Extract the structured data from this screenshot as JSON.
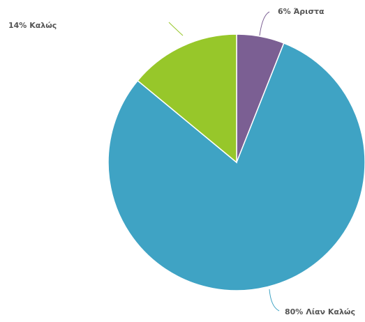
{
  "chart_data": {
    "type": "pie",
    "categories": [
      "Άριστα",
      "Λίαν Καλώς",
      "Καλώς"
    ],
    "values": [
      6,
      80,
      14
    ],
    "value_labels": [
      "6%",
      "80%",
      "14%"
    ],
    "colors": [
      "#7b5f93",
      "#3fa3c4",
      "#97c72a"
    ]
  }
}
